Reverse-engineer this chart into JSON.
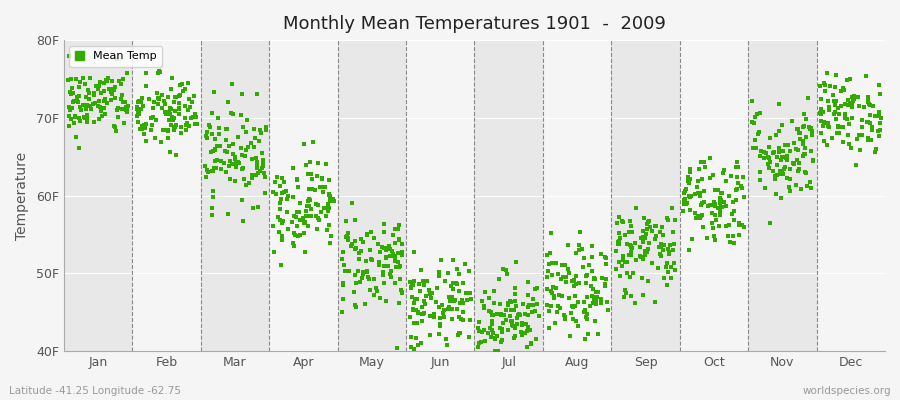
{
  "title": "Monthly Mean Temperatures 1901  -  2009",
  "ylabel": "Temperature",
  "xlabel_bottom_left": "Latitude -41.25 Longitude -62.75",
  "xlabel_bottom_right": "worldspecies.org",
  "legend_label": "Mean Temp",
  "dot_color": "#33aa00",
  "background_color": "#f5f5f5",
  "band_colors": [
    "#e8e8e8",
    "#f5f5f5"
  ],
  "ylim": [
    40,
    80
  ],
  "yticks": [
    40,
    50,
    60,
    70,
    80
  ],
  "ytick_labels": [
    "40F",
    "50F",
    "60F",
    "70F",
    "80F"
  ],
  "months": [
    "Jan",
    "Feb",
    "Mar",
    "Apr",
    "May",
    "Jun",
    "Jul",
    "Aug",
    "Sep",
    "Oct",
    "Nov",
    "Dec"
  ],
  "monthly_means": [
    72.0,
    70.5,
    65.5,
    59.0,
    51.5,
    45.5,
    44.5,
    47.5,
    53.0,
    59.5,
    65.5,
    70.5
  ],
  "monthly_std": [
    2.2,
    2.5,
    3.2,
    3.0,
    3.2,
    3.0,
    2.8,
    3.0,
    3.0,
    3.0,
    3.2,
    2.5
  ],
  "n_years": 109,
  "seed": 42
}
